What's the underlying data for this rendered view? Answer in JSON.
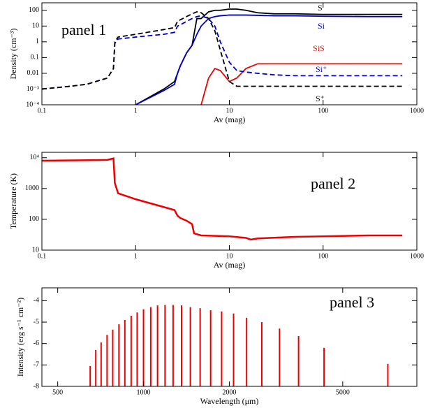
{
  "chart_data": [
    {
      "type": "line",
      "xlog": true,
      "ylog": true,
      "xlabel": "Av (mag)",
      "ylabel": "Density (cm⁻³)",
      "annotation": "panel 1",
      "xlim": [
        0.1,
        1000
      ],
      "xticks": [
        0.1,
        1,
        10,
        100,
        1000
      ],
      "ylim": [
        0.0001,
        300
      ],
      "yticks": [
        {
          "value": 0.0001,
          "label": "10⁻⁴"
        },
        {
          "value": 0.001,
          "label": "10⁻³"
        },
        0.01,
        0.1,
        1,
        10,
        100
      ],
      "x": [
        0.1,
        0.2,
        0.3,
        0.5,
        0.58,
        0.6,
        0.65,
        1,
        2,
        2.6,
        2.8,
        3,
        3.5,
        4,
        4.5,
        5,
        6,
        7,
        8,
        10,
        12,
        15,
        20,
        30,
        50,
        100,
        300,
        700
      ],
      "series": [
        {
          "name": "S",
          "color": "#000000",
          "dashed": false,
          "values": [
            null,
            null,
            null,
            null,
            null,
            null,
            null,
            0.0001,
            0.001,
            0.003,
            0.01,
            0.03,
            0.2,
            0.6,
            30,
            30,
            80,
            100,
            100,
            120,
            120,
            100,
            70,
            60,
            60,
            55,
            55,
            55
          ]
        },
        {
          "name": "Si",
          "color": "#0000cc",
          "dashed": false,
          "values": [
            null,
            null,
            null,
            null,
            null,
            null,
            null,
            0.0001,
            0.0008,
            0.002,
            0.01,
            0.03,
            0.2,
            0.6,
            3,
            10,
            30,
            40,
            45,
            50,
            50,
            50,
            48,
            45,
            45,
            42,
            40,
            40
          ]
        },
        {
          "name": "SiS",
          "color": "#ee0000",
          "dashed": false,
          "values": [
            null,
            null,
            null,
            null,
            null,
            null,
            null,
            null,
            null,
            null,
            null,
            null,
            null,
            null,
            null,
            0.0001,
            0.005,
            0.02,
            0.015,
            0.003,
            0.005,
            0.02,
            0.04,
            0.04,
            0.04,
            0.04,
            0.04,
            0.04
          ]
        },
        {
          "name": "Si⁺",
          "color": "#0000cc",
          "dashed": true,
          "values": [
            0.001,
            0.0015,
            0.002,
            0.005,
            0.02,
            0.8,
            1.5,
            2,
            3,
            4,
            10,
            12,
            20,
            30,
            40,
            45,
            30,
            10,
            1,
            0.05,
            0.015,
            0.012,
            0.01,
            0.008,
            0.007,
            0.007,
            0.007,
            0.007
          ]
        },
        {
          "name": "S⁺",
          "color": "#000000",
          "dashed": true,
          "values": [
            0.001,
            0.0015,
            0.002,
            0.005,
            0.02,
            1,
            2,
            3,
            6,
            8,
            20,
            25,
            40,
            60,
            80,
            70,
            30,
            5,
            0.3,
            0.003,
            0.0015,
            0.0015,
            0.0015,
            0.0015,
            0.0015,
            0.0015,
            0.0015,
            0.0015
          ]
        }
      ]
    },
    {
      "type": "line",
      "xlog": true,
      "ylog": true,
      "xlabel": "Av (mag)",
      "ylabel": "Temperature (K)",
      "annotation": "panel 2",
      "xlim": [
        0.1,
        1000
      ],
      "xticks": [
        0.1,
        1,
        10,
        100,
        1000
      ],
      "ylim": [
        10,
        15000
      ],
      "yticks": [
        10,
        100,
        1000,
        {
          "value": 10000,
          "label": "10⁴"
        }
      ],
      "x": [
        0.1,
        0.5,
        0.58,
        0.6,
        0.65,
        1,
        2,
        2.6,
        2.8,
        3,
        3.5,
        4,
        4.2,
        5,
        10,
        15,
        17,
        20,
        50,
        100,
        300,
        700
      ],
      "series": [
        {
          "color": "#ee0000",
          "dashed": false,
          "values": [
            8000,
            8500,
            9500,
            1500,
            700,
            450,
            250,
            200,
            130,
            110,
            90,
            70,
            35,
            30,
            28,
            25,
            22,
            24,
            27,
            28,
            30,
            30
          ]
        }
      ]
    },
    {
      "type": "stem",
      "xlog": true,
      "ylog": false,
      "xlabel": "Wavelength (μm)",
      "ylabel": "Intensity (erg s⁻¹ cm⁻²)",
      "annotation": "panel 3",
      "xlim": [
        440,
        9100
      ],
      "xticks": [
        500,
        1000,
        2000,
        5000
      ],
      "ylim": [
        -8,
        -3.4
      ],
      "yticks": [
        -8,
        -7,
        -6,
        -5,
        -4
      ],
      "x": [
        650,
        680,
        710,
        745,
        780,
        820,
        860,
        905,
        950,
        1000,
        1060,
        1120,
        1190,
        1270,
        1360,
        1460,
        1580,
        1720,
        1880,
        2070,
        2300,
        2600,
        3000,
        3500,
        4300,
        7200
      ],
      "series": [
        {
          "color": "#ee0000",
          "values": [
            -7.05,
            -6.3,
            -5.95,
            -5.6,
            -5.35,
            -5.1,
            -4.9,
            -4.7,
            -4.55,
            -4.4,
            -4.3,
            -4.22,
            -4.2,
            -4.2,
            -4.22,
            -4.3,
            -4.35,
            -4.45,
            -4.5,
            -4.6,
            -4.8,
            -5.0,
            -5.3,
            -5.65,
            -6.2,
            -6.95
          ]
        }
      ]
    }
  ]
}
